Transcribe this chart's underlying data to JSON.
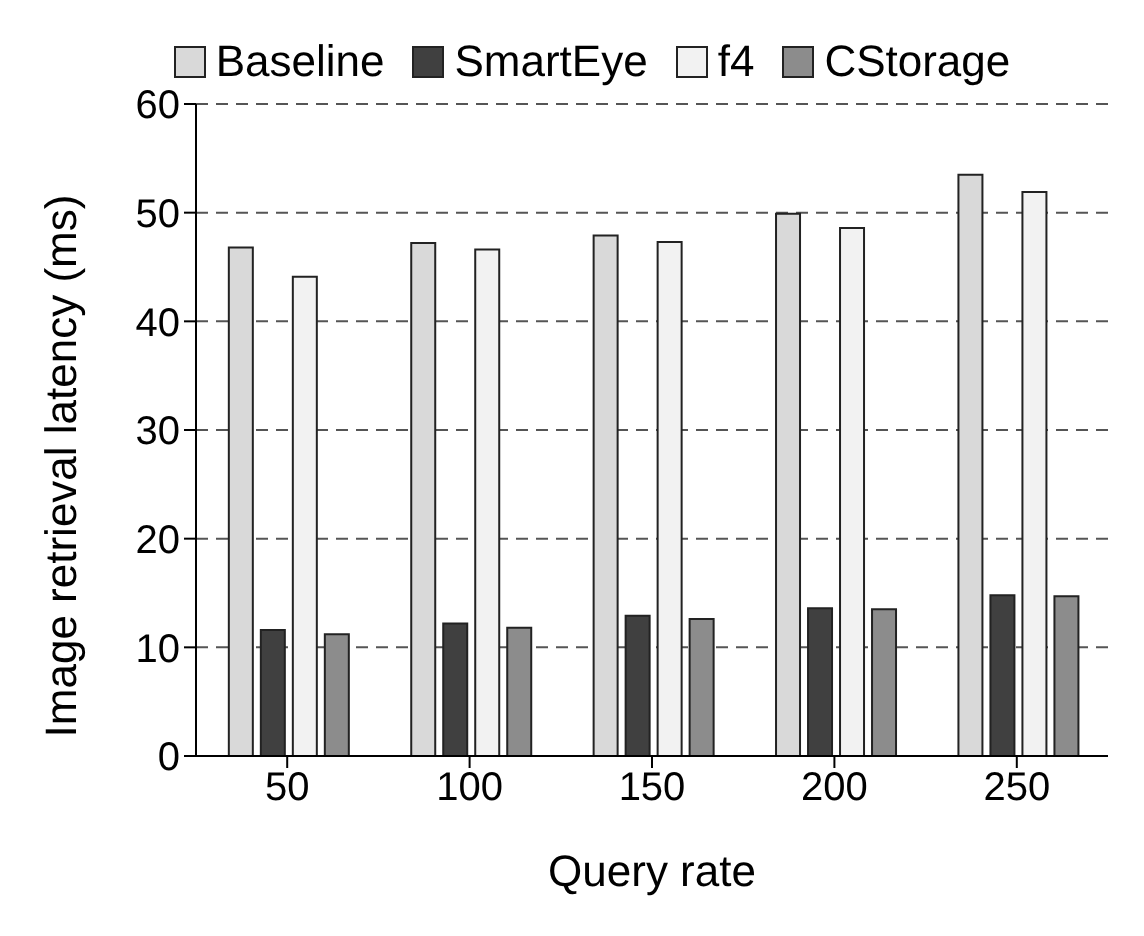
{
  "chart_data": {
    "type": "bar",
    "xlabel": "Query rate",
    "ylabel": "Image retrieval latency (ms)",
    "categories": [
      "50",
      "100",
      "150",
      "200",
      "250"
    ],
    "series": [
      {
        "name": "Baseline",
        "color": "#d9d9d9",
        "values": [
          46.8,
          47.2,
          47.9,
          49.9,
          53.5
        ]
      },
      {
        "name": "SmartEye",
        "color": "#404040",
        "values": [
          11.6,
          12.2,
          12.9,
          13.6,
          14.8
        ]
      },
      {
        "name": "f4",
        "color": "#f2f2f2",
        "values": [
          44.1,
          46.6,
          47.3,
          48.6,
          51.9
        ]
      },
      {
        "name": "CStorage",
        "color": "#8c8c8c",
        "values": [
          11.2,
          11.8,
          12.6,
          13.5,
          14.7
        ]
      }
    ],
    "ylim": [
      0,
      60
    ],
    "yticks": [
      0,
      10,
      20,
      30,
      40,
      50,
      60
    ],
    "grid": "y",
    "legend": "top"
  }
}
